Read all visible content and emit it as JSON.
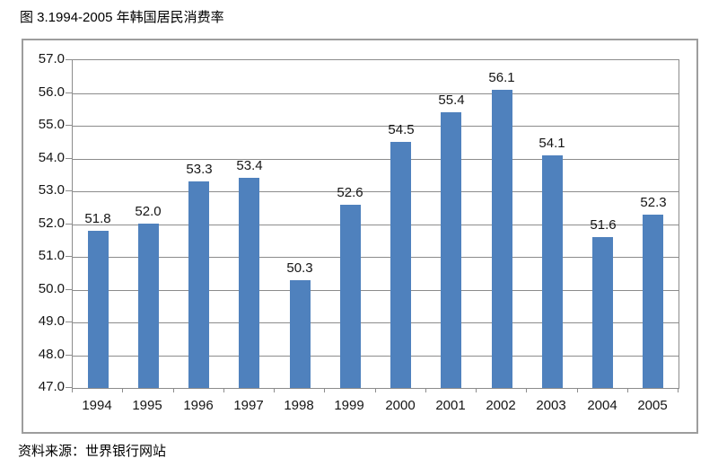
{
  "page": {
    "title": "图 3.1994-2005 年韩国居民消费率",
    "source": "资料来源：世界银行网站"
  },
  "chart_data": {
    "type": "bar",
    "title": "图 3.1994-2005 年韩国居民消费率",
    "categories": [
      "1994",
      "1995",
      "1996",
      "1997",
      "1998",
      "1999",
      "2000",
      "2001",
      "2002",
      "2003",
      "2004",
      "2005"
    ],
    "values": [
      51.8,
      52.0,
      53.3,
      53.4,
      50.3,
      52.6,
      54.5,
      55.4,
      56.1,
      54.1,
      51.6,
      52.3
    ],
    "xlabel": "",
    "ylabel": "",
    "ylim": [
      47.0,
      57.0
    ],
    "ytick_step": 1.0,
    "grid": true,
    "legend": false,
    "data_labels": true,
    "bar_color": "#4f81bd",
    "grid_color": "#8c8c8c",
    "frame_color": "#9d9d9d",
    "source_note": "资料来源：世界银行网站"
  }
}
